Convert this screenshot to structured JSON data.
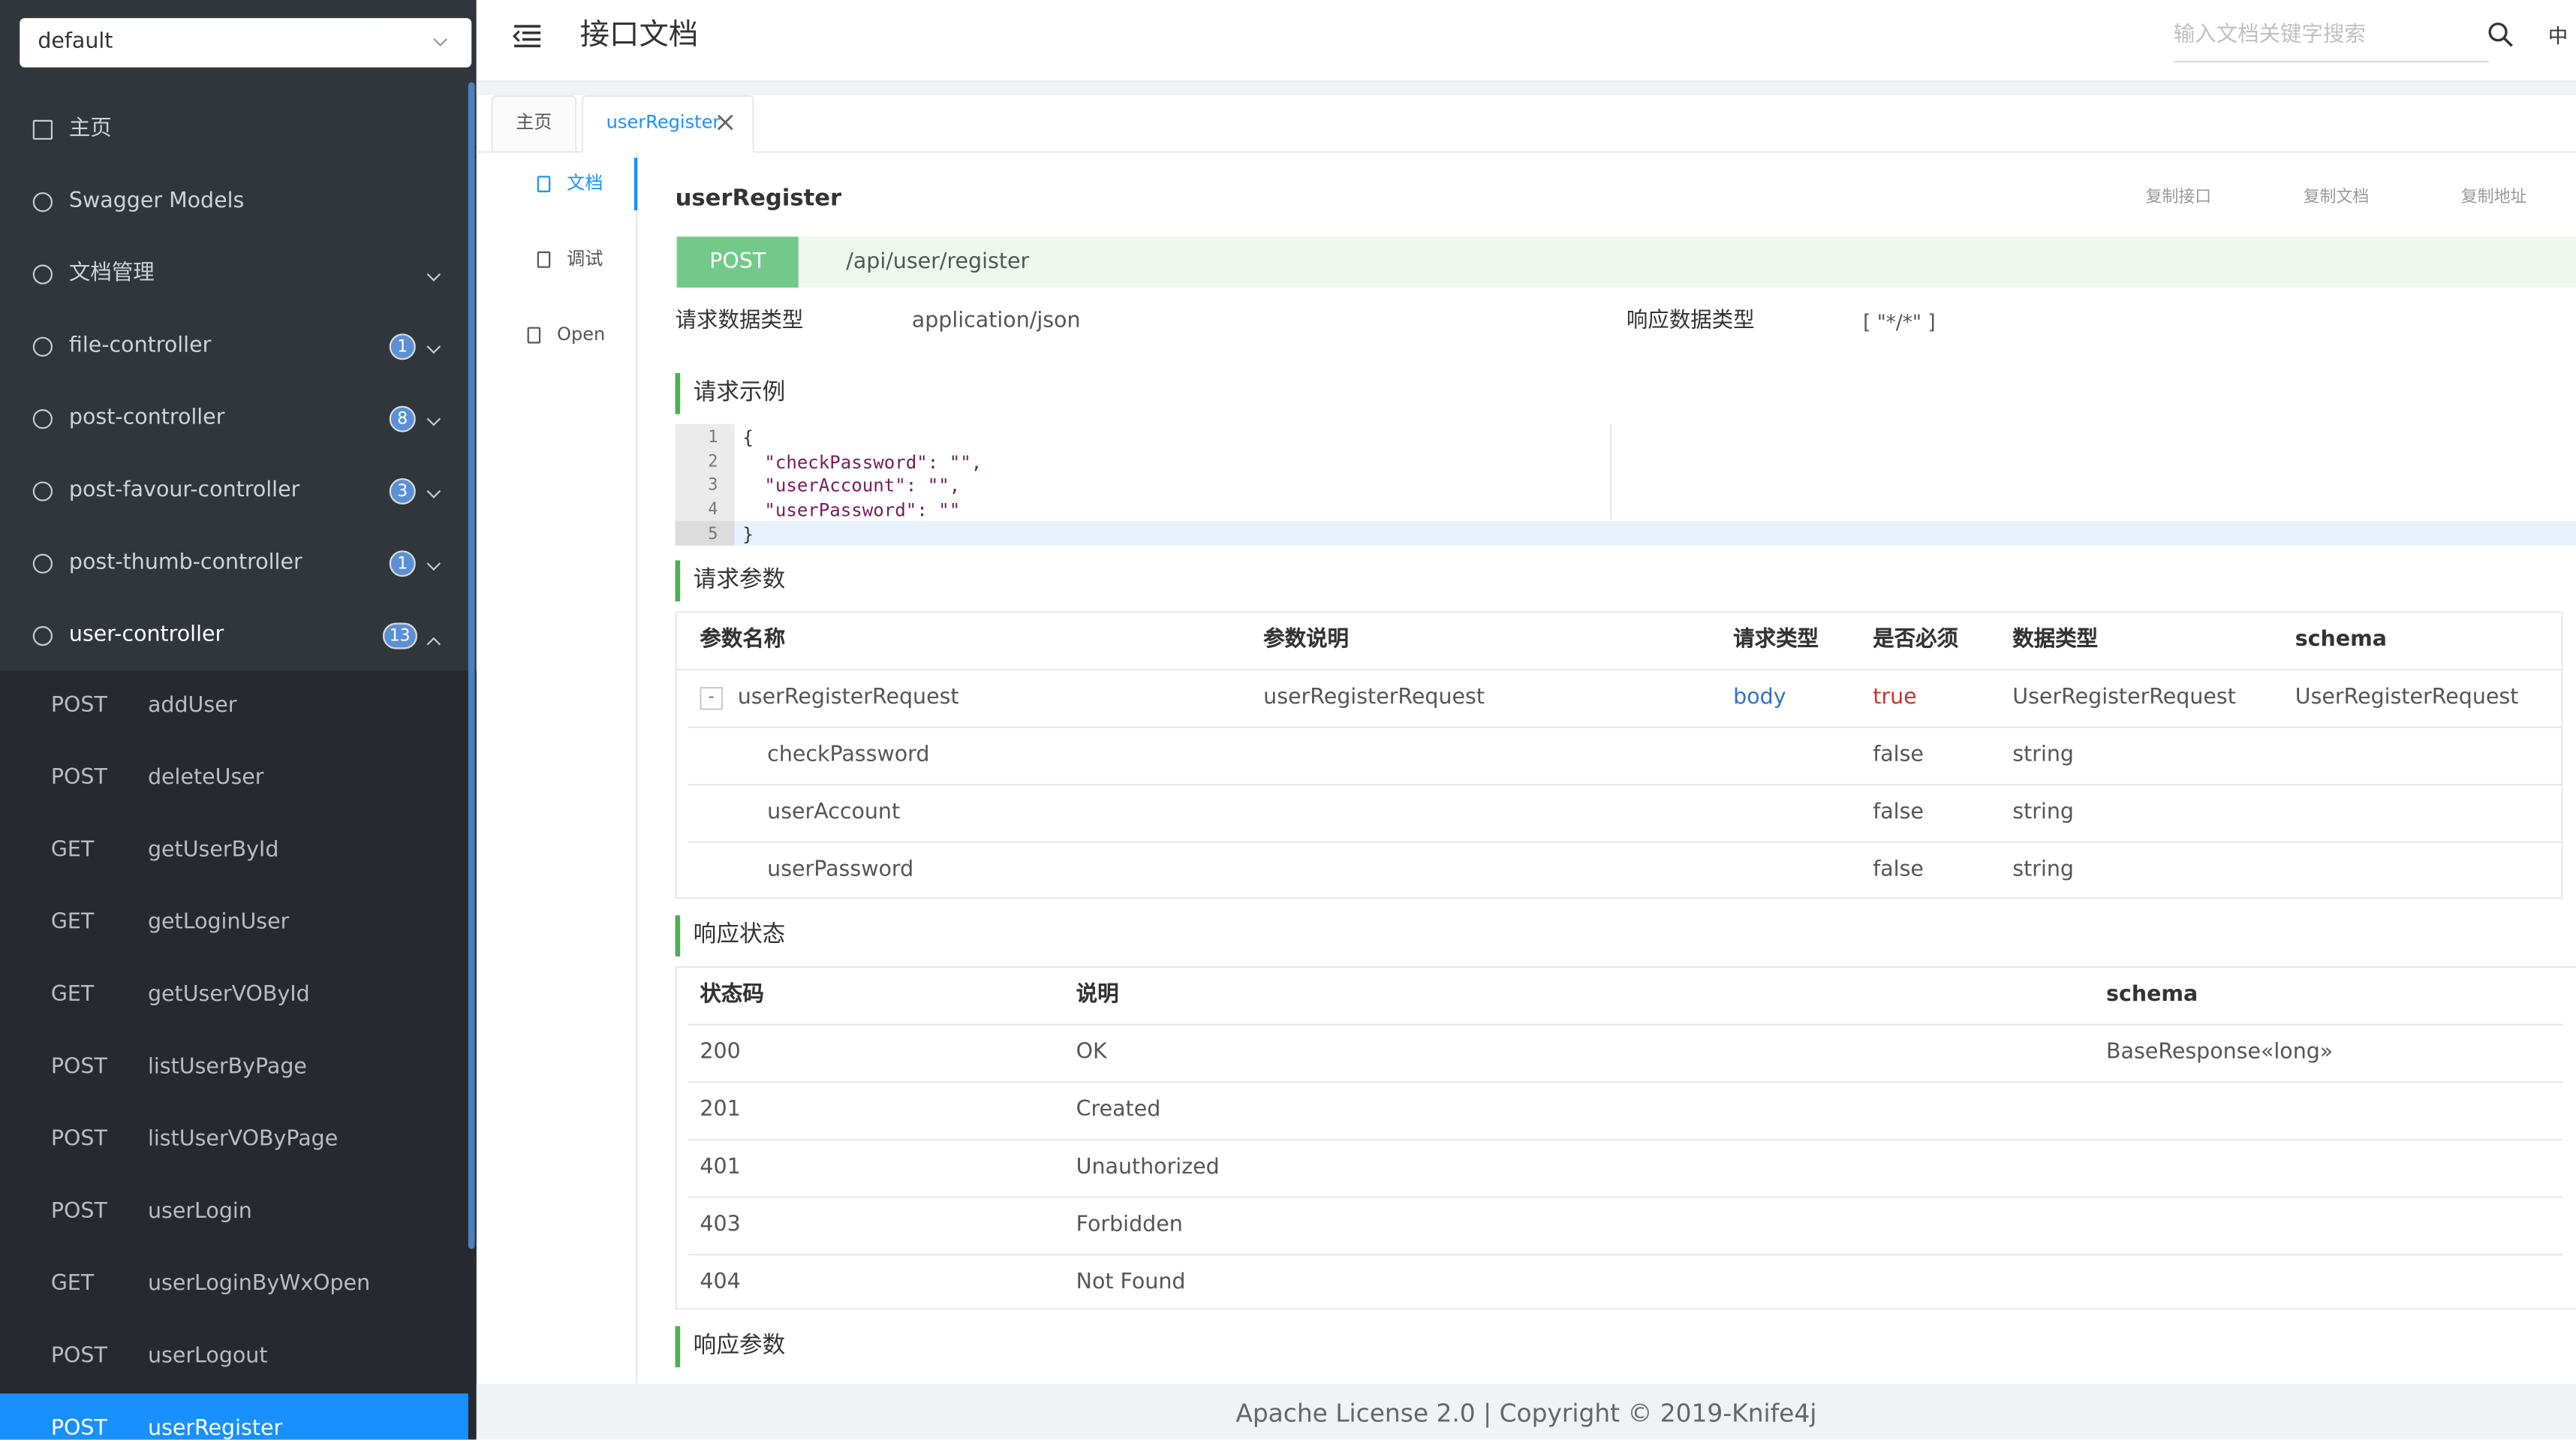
{
  "sidebar": {
    "group": "default",
    "menu": [
      {
        "label": "主页"
      },
      {
        "label": "Swagger Models"
      },
      {
        "label": "文档管理"
      },
      {
        "label": "file-controller",
        "count": 1
      },
      {
        "label": "post-controller",
        "count": 8
      },
      {
        "label": "post-favour-controller",
        "count": 3
      },
      {
        "label": "post-thumb-controller",
        "count": 1
      },
      {
        "label": "user-controller",
        "count": 13
      }
    ],
    "endpoints": [
      {
        "method": "POST",
        "name": "addUser"
      },
      {
        "method": "POST",
        "name": "deleteUser"
      },
      {
        "method": "GET",
        "name": "getUserById"
      },
      {
        "method": "GET",
        "name": "getLoginUser"
      },
      {
        "method": "GET",
        "name": "getUserVOById"
      },
      {
        "method": "POST",
        "name": "listUserByPage"
      },
      {
        "method": "POST",
        "name": "listUserVOByPage"
      },
      {
        "method": "POST",
        "name": "userLogin"
      },
      {
        "method": "GET",
        "name": "userLoginByWxOpen"
      },
      {
        "method": "POST",
        "name": "userLogout"
      },
      {
        "method": "POST",
        "name": "userRegister"
      }
    ]
  },
  "header": {
    "title": "接口文档",
    "search_placeholder": "输入文档关键字搜索",
    "language": "中"
  },
  "tabs": [
    "主页",
    "userRegister"
  ],
  "side_tabs": [
    "文档",
    "调试",
    "Open"
  ],
  "doc": {
    "name": "userRegister",
    "actions": [
      "复制接口",
      "复制文档",
      "复制地址"
    ],
    "method": "POST",
    "path": "/api/user/register",
    "request_type_label": "请求数据类型",
    "request_type": "application/json",
    "response_type_label": "响应数据类型",
    "response_type": "[ \"*/*\" ]",
    "request_example": {
      "title": "请求示例",
      "lines": [
        {
          "no": 1,
          "text": "{"
        },
        {
          "no": 2,
          "text": "  \"checkPassword\": \"\","
        },
        {
          "no": 3,
          "text": "  \"userAccount\": \"\","
        },
        {
          "no": 4,
          "text": "  \"userPassword\": \"\""
        },
        {
          "no": 5,
          "text": "}"
        }
      ]
    },
    "request_params": {
      "title": "请求参数",
      "headers": [
        "参数名称",
        "参数说明",
        "请求类型",
        "是否必须",
        "数据类型",
        "schema"
      ],
      "row": {
        "toggle": "-",
        "name": "userRegisterRequest",
        "desc": "userRegisterRequest",
        "in": "body",
        "required": "true",
        "type": "UserRegisterRequest",
        "schema": "UserRegisterRequest"
      },
      "children": [
        {
          "name": "checkPassword",
          "required": "false",
          "type": "string"
        },
        {
          "name": "userAccount",
          "required": "false",
          "type": "string"
        },
        {
          "name": "userPassword",
          "required": "false",
          "type": "string"
        }
      ]
    },
    "response_status": {
      "title": "响应状态",
      "headers": [
        "状态码",
        "说明",
        "schema"
      ],
      "rows": [
        {
          "code": 200,
          "desc": "OK",
          "schema": "BaseResponse«long»"
        },
        {
          "code": 201,
          "desc": "Created"
        },
        {
          "code": 401,
          "desc": "Unauthorized"
        },
        {
          "code": 403,
          "desc": "Forbidden"
        },
        {
          "code": 404,
          "desc": "Not Found"
        }
      ]
    },
    "response_params": {
      "title": "响应参数"
    }
  },
  "footer": "Apache License 2.0 | Copyright © 2019-Knife4j"
}
